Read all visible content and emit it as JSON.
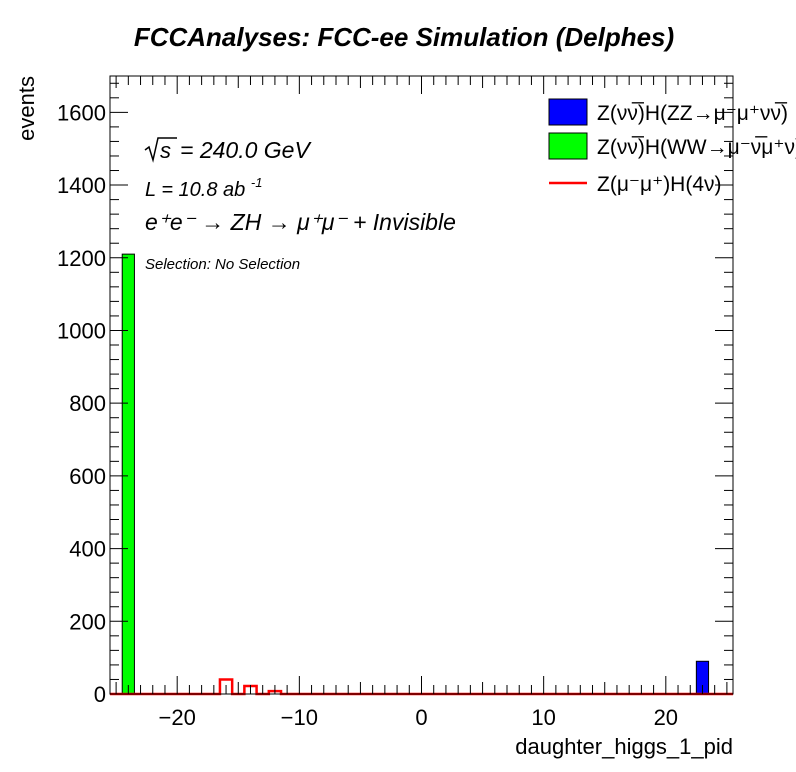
{
  "chart_data": {
    "type": "bar",
    "title": "FCCAnalyses: FCC-ee Simulation (Delphes)",
    "xlabel": "daughter_higgs_1_pid",
    "ylabel": "events",
    "xlim": [
      -25.5,
      25.5
    ],
    "ylim": [
      0,
      1700
    ],
    "x_ticks": [
      -20,
      -10,
      0,
      10,
      20
    ],
    "y_ticks": [
      0,
      200,
      400,
      600,
      800,
      1000,
      1200,
      1400,
      1600
    ],
    "grid": false,
    "legend_position": "top-right",
    "annotations": {
      "sqrt_s": "= 240.0 GeV",
      "lumi": "L = 10.8 ab",
      "lumi_exp": "-1",
      "process": "e⁺e⁻ → ZH → μ⁺μ⁻ + Invisible",
      "selection": "Selection: No Selection"
    },
    "series": [
      {
        "name": "Z(νν̅)H(ZZ→μ⁻μ⁺νν̅)",
        "style": "fill",
        "color": "#0000ff",
        "bins": [
          {
            "x": 23,
            "value": 90
          }
        ]
      },
      {
        "name": "Z(νν̅)H(WW→μ⁻ν̅μ⁺ν)",
        "style": "fill",
        "color": "#00ff00",
        "bins": [
          {
            "x": -24,
            "value": 1210
          }
        ]
      },
      {
        "name": "Z(μ⁻μ⁺)H(4ν)",
        "style": "line",
        "color": "#ff0000",
        "bins": [
          {
            "x": -16,
            "value": 40
          },
          {
            "x": -14,
            "value": 22
          },
          {
            "x": -12,
            "value": 8
          }
        ]
      }
    ]
  }
}
